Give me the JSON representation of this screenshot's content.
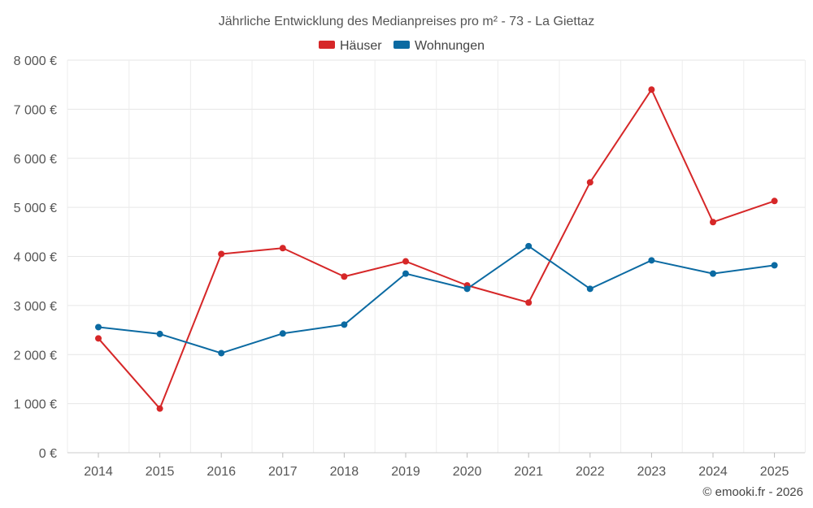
{
  "chart_data": {
    "type": "line",
    "title": "Jährliche Entwicklung des Medianpreises pro m² - 73 - La Giettaz",
    "categories": [
      "2014",
      "2015",
      "2016",
      "2017",
      "2018",
      "2019",
      "2020",
      "2021",
      "2022",
      "2023",
      "2024",
      "2025"
    ],
    "ylim": [
      0,
      8000
    ],
    "yticks": [
      0,
      1000,
      2000,
      3000,
      4000,
      5000,
      6000,
      7000,
      8000
    ],
    "ytick_labels": [
      "0 €",
      "1 000 €",
      "2 000 €",
      "3 000 €",
      "4 000 €",
      "5 000 €",
      "6 000 €",
      "7 000 €",
      "8 000 €"
    ],
    "grid": true,
    "legend_position": "top-center",
    "series": [
      {
        "name": "Häuser",
        "color": "#d62728",
        "values": [
          2330,
          900,
          4050,
          4170,
          3590,
          3900,
          3410,
          3060,
          5510,
          7400,
          4700,
          5130
        ]
      },
      {
        "name": "Wohnungen",
        "color": "#0b6aa2",
        "values": [
          2560,
          2420,
          2030,
          2430,
          2610,
          3650,
          3340,
          4210,
          3340,
          3920,
          3650,
          3820
        ]
      }
    ]
  },
  "credit": "© emooki.fr - 2026"
}
